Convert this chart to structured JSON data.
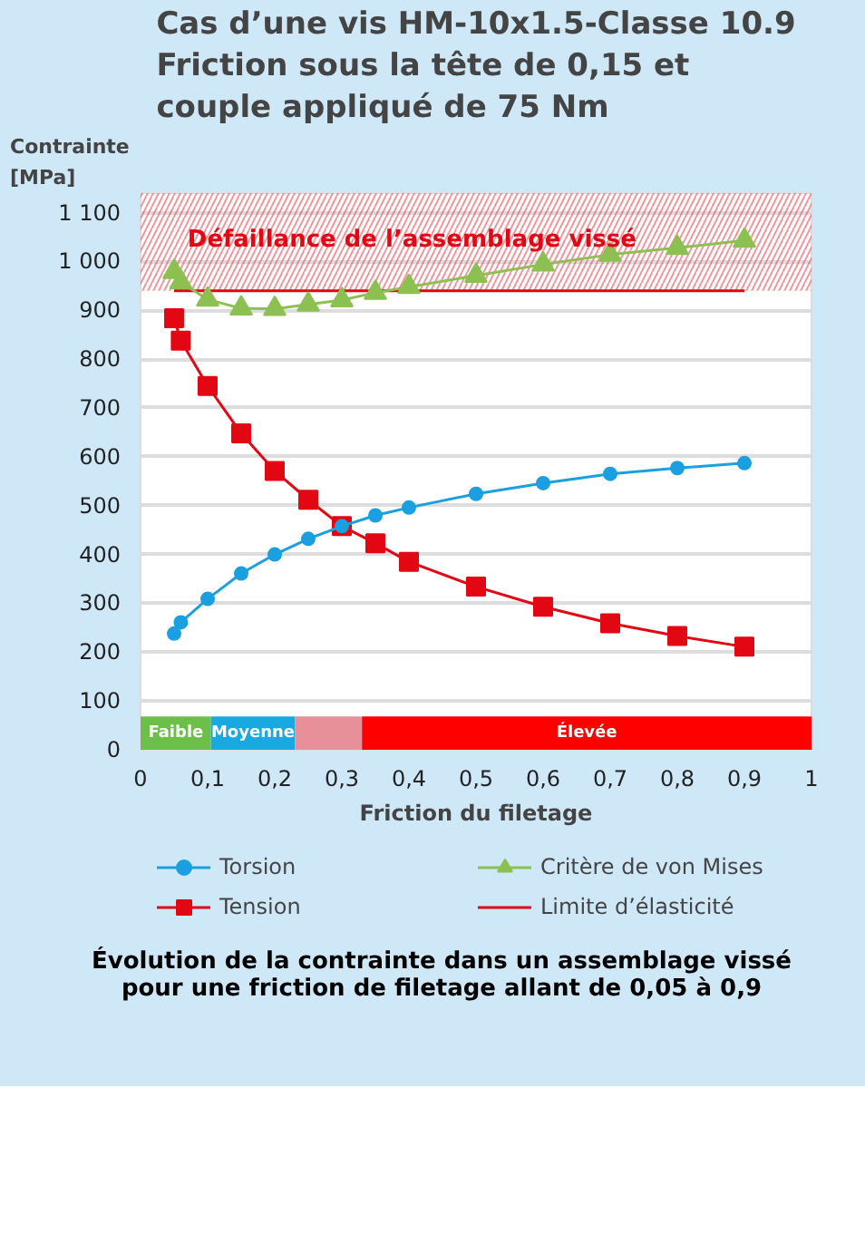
{
  "chart_data": {
    "type": "line",
    "title": "Cas d’une vis HM-10x1.5-Classe 10.9\nFriction sous la tête de 0,15 et\ncouple appliqué de 75 Nm",
    "ylabel": "Contrainte\n[MPa]",
    "xlabel": "Friction du filetage",
    "x": [
      0.05,
      0.06,
      0.1,
      0.15,
      0.2,
      0.25,
      0.3,
      0.35,
      0.4,
      0.5,
      0.6,
      0.7,
      0.8,
      0.9
    ],
    "series": [
      {
        "name": "Torsion",
        "color": "#1aa0e0",
        "marker": "circle",
        "values": [
          238,
          261,
          309,
          361,
          400,
          432,
          458,
          480,
          496,
          524,
          546,
          565,
          577,
          587
        ]
      },
      {
        "name": "Tension",
        "color": "#e30613",
        "marker": "square",
        "values": [
          884,
          838,
          745,
          648,
          571,
          512,
          458,
          423,
          385,
          334,
          293,
          259,
          233,
          211
        ]
      },
      {
        "name": "Critère de von Mises",
        "color": "#8cc152",
        "marker": "triangle",
        "values": [
          979,
          958,
          922,
          904,
          903,
          912,
          921,
          936,
          948,
          971,
          994,
          1014,
          1028,
          1043
        ]
      },
      {
        "name": "Limite d’élasticité",
        "color": "#e30613",
        "marker": "none",
        "x": [
          0.05,
          0.9
        ],
        "values": [
          940,
          940
        ]
      }
    ],
    "bands": [
      {
        "axis": "y",
        "from": 940,
        "to": 1140,
        "label": "Défaillance de l’assemblage vissé",
        "color": "#e8505a"
      },
      {
        "axis": "x",
        "from": 0,
        "to": 0.105,
        "label": "Faible",
        "color": "#6cc04a"
      },
      {
        "axis": "x",
        "from": 0.105,
        "to": 0.23,
        "label": "Moyenne",
        "color": "#1aa8e0"
      },
      {
        "axis": "x",
        "from": 0.23,
        "to": 0.33,
        "label": null,
        "color": "#e8909a"
      },
      {
        "axis": "x",
        "from": 0.33,
        "to": 1,
        "label": "Élevée",
        "color": "#ff0000"
      }
    ],
    "xlim": [
      0,
      1
    ],
    "ylim": [
      0,
      1140
    ],
    "xticks": [
      0,
      {
        "value": 0.1,
        "label": "0,1"
      },
      {
        "value": 0.2,
        "label": "0,2"
      },
      {
        "value": 0.3,
        "label": "0,3"
      },
      {
        "value": 0.4,
        "label": "0,4"
      },
      {
        "value": 0.5,
        "label": "0,5"
      },
      {
        "value": 0.6,
        "label": "0,6"
      },
      {
        "value": 0.7,
        "label": "0,7"
      },
      {
        "value": 0.8,
        "label": "0,8"
      },
      {
        "value": 0.9,
        "label": "0,9"
      },
      1
    ],
    "yticks": [
      0,
      100,
      200,
      300,
      400,
      500,
      600,
      700,
      800,
      900,
      {
        "value": 1000,
        "label": "1 000"
      },
      {
        "value": 1100,
        "label": "1 100"
      }
    ],
    "grid": "y",
    "legend": "bottom",
    "annotations": [
      "Évolution de la contrainte dans un assemblage vissé\npour une friction de filetage allant de 0,05 à 0,9"
    ]
  }
}
